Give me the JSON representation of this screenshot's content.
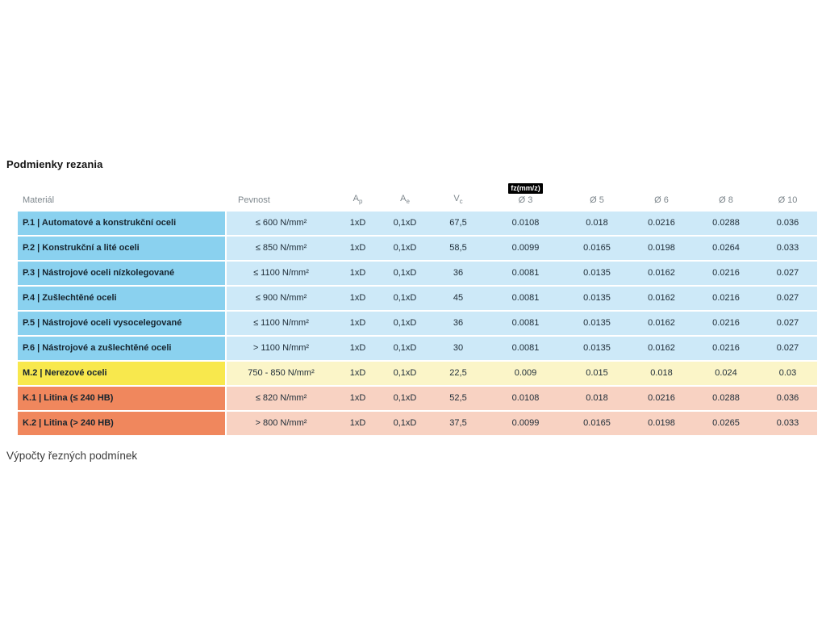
{
  "page": {
    "title": "Podmienky rezania",
    "footer": "Výpočty řezných podmínek"
  },
  "table": {
    "headers": {
      "material": "Materiál",
      "pevnost": "Pevnost",
      "ap": {
        "base": "A",
        "sub": "p"
      },
      "ae": {
        "base": "A",
        "sub": "e"
      },
      "vc": {
        "base": "V",
        "sub": "c"
      },
      "fz_badge": "fz(mm/z)",
      "diameters": [
        "Ø 3",
        "Ø 5",
        "Ø 6",
        "Ø 8",
        "Ø 10"
      ]
    },
    "group_colors": {
      "steel": {
        "material_bg": "#8AD1EF",
        "data_bg": "#CDE9F8"
      },
      "stainless": {
        "material_bg": "#F8E84D",
        "data_bg": "#FBF5C8"
      },
      "cast_iron": {
        "material_bg": "#F0875D",
        "data_bg": "#F8D2C2"
      }
    },
    "rows": [
      {
        "group": "steel",
        "material": "P.1 | Automatové a konstrukční oceli",
        "pevnost": "≤ 600 N/mm²",
        "ap": "1xD",
        "ae": "0,1xD",
        "vc": "67,5",
        "fz": [
          "0.0108",
          "0.018",
          "0.0216",
          "0.0288",
          "0.036"
        ]
      },
      {
        "group": "steel",
        "material": "P.2 | Konstrukční a lité oceli",
        "pevnost": "≤ 850 N/mm²",
        "ap": "1xD",
        "ae": "0,1xD",
        "vc": "58,5",
        "fz": [
          "0.0099",
          "0.0165",
          "0.0198",
          "0.0264",
          "0.033"
        ]
      },
      {
        "group": "steel",
        "material": "P.3 | Nástrojové oceli nízkolegované",
        "pevnost": "≤ 1100 N/mm²",
        "ap": "1xD",
        "ae": "0,1xD",
        "vc": "36",
        "fz": [
          "0.0081",
          "0.0135",
          "0.0162",
          "0.0216",
          "0.027"
        ]
      },
      {
        "group": "steel",
        "material": "P.4 | Zušlechtěné oceli",
        "pevnost": "≤ 900 N/mm²",
        "ap": "1xD",
        "ae": "0,1xD",
        "vc": "45",
        "fz": [
          "0.0081",
          "0.0135",
          "0.0162",
          "0.0216",
          "0.027"
        ]
      },
      {
        "group": "steel",
        "material": "P.5 | Nástrojové oceli vysocelegované",
        "pevnost": "≤ 1100 N/mm²",
        "ap": "1xD",
        "ae": "0,1xD",
        "vc": "36",
        "fz": [
          "0.0081",
          "0.0135",
          "0.0162",
          "0.0216",
          "0.027"
        ]
      },
      {
        "group": "steel",
        "material": "P.6 | Nástrojové a zušlechtěné oceli",
        "pevnost": "> 1100 N/mm²",
        "ap": "1xD",
        "ae": "0,1xD",
        "vc": "30",
        "fz": [
          "0.0081",
          "0.0135",
          "0.0162",
          "0.0216",
          "0.027"
        ]
      },
      {
        "group": "stainless",
        "material": "M.2 | Nerezové oceli",
        "pevnost": "750 - 850 N/mm²",
        "ap": "1xD",
        "ae": "0,1xD",
        "vc": "22,5",
        "fz": [
          "0.009",
          "0.015",
          "0.018",
          "0.024",
          "0.03"
        ]
      },
      {
        "group": "cast_iron",
        "material": "K.1 | Litina (≤ 240 HB)",
        "pevnost": "≤ 820 N/mm²",
        "ap": "1xD",
        "ae": "0,1xD",
        "vc": "52,5",
        "fz": [
          "0.0108",
          "0.018",
          "0.0216",
          "0.0288",
          "0.036"
        ]
      },
      {
        "group": "cast_iron",
        "material": "K.2 | Litina (> 240 HB)",
        "pevnost": "> 800 N/mm²",
        "ap": "1xD",
        "ae": "0,1xD",
        "vc": "37,5",
        "fz": [
          "0.0099",
          "0.0165",
          "0.0198",
          "0.0265",
          "0.033"
        ]
      }
    ]
  },
  "chart_data": {
    "type": "table",
    "title": "Podmienky rezania",
    "columns": [
      "Materiál",
      "Pevnost",
      "Ap",
      "Ae",
      "Vc",
      "fz(mm/z) Ø 3",
      "Ø 5",
      "Ø 6",
      "Ø 8",
      "Ø 10"
    ],
    "rows": [
      [
        "P.1 | Automatové a konstrukční oceli",
        "≤ 600 N/mm²",
        "1xD",
        "0,1xD",
        "67,5",
        0.0108,
        0.018,
        0.0216,
        0.0288,
        0.036
      ],
      [
        "P.2 | Konstrukční a lité oceli",
        "≤ 850 N/mm²",
        "1xD",
        "0,1xD",
        "58,5",
        0.0099,
        0.0165,
        0.0198,
        0.0264,
        0.033
      ],
      [
        "P.3 | Nástrojové oceli nízkolegované",
        "≤ 1100 N/mm²",
        "1xD",
        "0,1xD",
        "36",
        0.0081,
        0.0135,
        0.0162,
        0.0216,
        0.027
      ],
      [
        "P.4 | Zušlechtěné oceli",
        "≤ 900 N/mm²",
        "1xD",
        "0,1xD",
        "45",
        0.0081,
        0.0135,
        0.0162,
        0.0216,
        0.027
      ],
      [
        "P.5 | Nástrojové oceli vysocelegované",
        "≤ 1100 N/mm²",
        "1xD",
        "0,1xD",
        "36",
        0.0081,
        0.0135,
        0.0162,
        0.0216,
        0.027
      ],
      [
        "P.6 | Nástrojové a zušlechtěné oceli",
        "> 1100 N/mm²",
        "1xD",
        "0,1xD",
        "30",
        0.0081,
        0.0135,
        0.0162,
        0.0216,
        0.027
      ],
      [
        "M.2 | Nerezové oceli",
        "750 - 850 N/mm²",
        "1xD",
        "0,1xD",
        "22,5",
        0.009,
        0.015,
        0.018,
        0.024,
        0.03
      ],
      [
        "K.1 | Litina (≤ 240 HB)",
        "≤ 820 N/mm²",
        "1xD",
        "0,1xD",
        "52,5",
        0.0108,
        0.018,
        0.0216,
        0.0288,
        0.036
      ],
      [
        "K.2 | Litina (> 240 HB)",
        "> 800 N/mm²",
        "1xD",
        "0,1xD",
        "37,5",
        0.0099,
        0.0165,
        0.0198,
        0.0265,
        0.033
      ]
    ]
  }
}
